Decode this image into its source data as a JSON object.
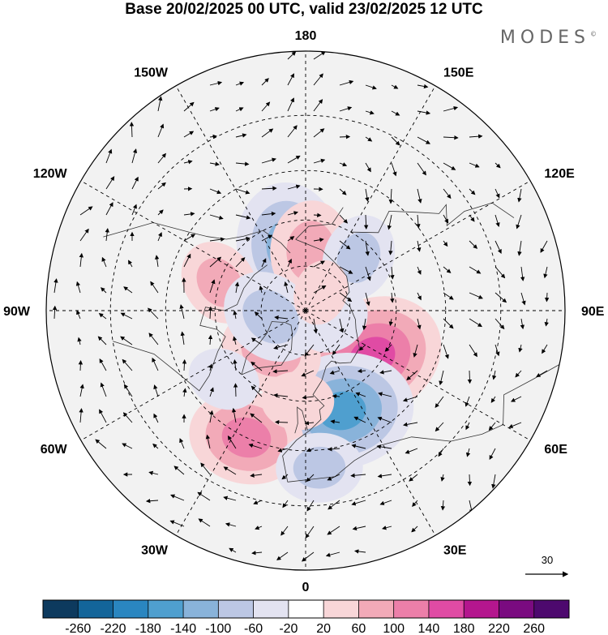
{
  "title": "Base 20/02/2025 00 UTC, valid 23/02/2025 12 UTC",
  "brand": "MODES",
  "brand_mark": "©",
  "longitude_labels": [
    {
      "text": "180",
      "lon": 180
    },
    {
      "text": "150E",
      "lon": 150
    },
    {
      "text": "120E",
      "lon": 120
    },
    {
      "text": "90E",
      "lon": 90
    },
    {
      "text": "60E",
      "lon": 60
    },
    {
      "text": "30E",
      "lon": 30
    },
    {
      "text": "0",
      "lon": 0
    },
    {
      "text": "30W",
      "lon": -30
    },
    {
      "text": "60W",
      "lon": -60
    },
    {
      "text": "90W",
      "lon": -90
    },
    {
      "text": "120W",
      "lon": -120
    },
    {
      "text": "150W",
      "lon": -150
    }
  ],
  "projection": "north-polar-stereographic",
  "reference_vector": {
    "value": "30"
  },
  "colorbar": {
    "ticks": [
      "-260",
      "-220",
      "-180",
      "-140",
      "-100",
      "-60",
      "-20",
      "20",
      "60",
      "100",
      "140",
      "180",
      "220",
      "260"
    ],
    "colors": [
      "#0d3a5e",
      "#13659a",
      "#2a86c0",
      "#4f9fcf",
      "#89b3da",
      "#bcc7e4",
      "#e3e3f1",
      "#ffffff",
      "#f8d6d8",
      "#f2aab8",
      "#ec7fa9",
      "#e04ba4",
      "#b4168e",
      "#7a0b80",
      "#4d096e"
    ]
  },
  "anomaly_features": [
    {
      "lat": 68,
      "lon": -165,
      "value": -120
    },
    {
      "lat": 70,
      "lon": 175,
      "value": 80
    },
    {
      "lat": 60,
      "lon": -108,
      "value": 60
    },
    {
      "lat": 65,
      "lon": 135,
      "value": -60
    },
    {
      "lat": 63,
      "lon": 55,
      "value": 140
    },
    {
      "lat": 55,
      "lon": 20,
      "value": -140
    },
    {
      "lat": 45,
      "lon": -25,
      "value": 100
    },
    {
      "lat": 72,
      "lon": -40,
      "value": 80
    },
    {
      "lat": 78,
      "lon": -80,
      "value": -80
    },
    {
      "lat": 80,
      "lon": 70,
      "value": -40
    },
    {
      "lat": 82,
      "lon": 140,
      "value": 30
    },
    {
      "lat": 40,
      "lon": 5,
      "value": -60
    },
    {
      "lat": 55,
      "lon": -50,
      "value": -40
    },
    {
      "lat": 60,
      "lon": -5,
      "value": 40
    }
  ]
}
